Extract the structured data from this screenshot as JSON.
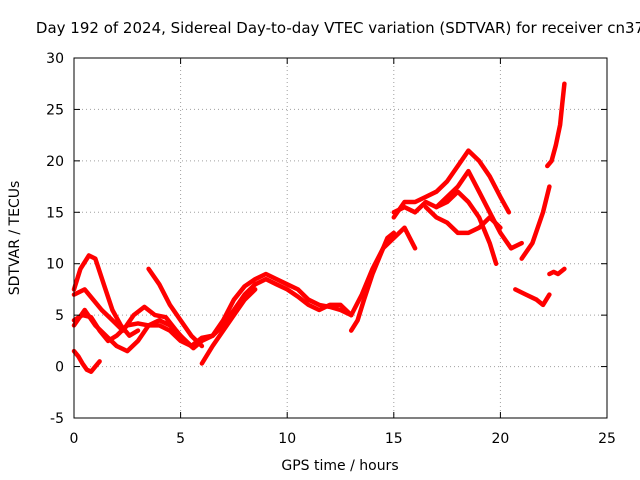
{
  "chart_data": {
    "type": "scatter",
    "title": "Day 192 of 2024, Sidereal Day-to-day VTEC variation (SDTVAR) for receiver cn37",
    "xlabel": "GPS time / hours",
    "ylabel": "SDTVAR / TECUs",
    "xlim": [
      0,
      25
    ],
    "ylim": [
      -5,
      30
    ],
    "xticks": [
      "0",
      "5",
      "10",
      "15",
      "20",
      "25"
    ],
    "yticks": [
      "-5",
      "0",
      "5",
      "10",
      "15",
      "20",
      "25",
      "30"
    ],
    "grid": true,
    "marker": "+",
    "color": "#ff0000",
    "series": [
      {
        "name": "s1",
        "x": [
          0,
          0.3,
          0.7,
          1.0,
          1.4,
          1.8,
          2.2,
          2.6,
          3.0
        ],
        "y": [
          7.5,
          9.5,
          10.8,
          10.5,
          8.0,
          5.5,
          4.0,
          3.0,
          3.5
        ]
      },
      {
        "name": "s2",
        "x": [
          0,
          0.5,
          0.9,
          1.3,
          1.8,
          2.3,
          2.8,
          3.3,
          3.8,
          4.3,
          4.8,
          5.2,
          5.6,
          6.0,
          6.5,
          7.0,
          7.5,
          8.0,
          8.5,
          9.0,
          9.5,
          10.0,
          10.5,
          11.0,
          11.5,
          12.0,
          12.5,
          13.0
        ],
        "y": [
          7.0,
          7.5,
          6.5,
          5.5,
          4.5,
          3.5,
          5.0,
          5.8,
          5.0,
          4.8,
          3.5,
          2.5,
          1.8,
          2.5,
          3.0,
          4.5,
          6.5,
          7.8,
          8.5,
          9.0,
          8.5,
          8.0,
          7.5,
          6.5,
          6.0,
          5.8,
          5.5,
          5.0
        ]
      },
      {
        "name": "s3",
        "x": [
          0,
          0.5,
          1.0,
          1.5,
          2.0,
          2.5,
          3.0,
          3.5,
          4.0,
          4.5,
          5.0,
          5.5,
          6.0,
          6.5,
          7.0,
          7.5,
          8.0,
          8.5,
          9.0,
          9.5,
          10.0,
          10.5,
          11.0,
          11.5,
          12.0,
          12.5,
          13.0
        ],
        "y": [
          4.0,
          5.5,
          4.0,
          3.0,
          2.0,
          1.5,
          2.5,
          4.0,
          4.5,
          4.0,
          3.0,
          2.0,
          2.8,
          3.0,
          4.0,
          5.5,
          7.0,
          8.0,
          8.5,
          8.0,
          7.5,
          6.8,
          6.0,
          5.5,
          6.0,
          6.0,
          5.0
        ]
      },
      {
        "name": "s4",
        "x": [
          0,
          0.4,
          0.8,
          1.2,
          1.6,
          2.0,
          2.5,
          3.0,
          3.5,
          4.0,
          4.5,
          5.0,
          5.5
        ],
        "y": [
          4.5,
          5.0,
          4.8,
          3.5,
          2.5,
          3.0,
          4.0,
          4.2,
          4.0,
          4.0,
          3.5,
          2.5,
          2.0
        ]
      },
      {
        "name": "s5",
        "x": [
          0,
          0.2,
          0.4,
          0.6,
          0.8,
          1.0,
          1.2
        ],
        "y": [
          1.5,
          1.0,
          0.3,
          -0.3,
          -0.5,
          0.0,
          0.5
        ]
      },
      {
        "name": "s6",
        "x": [
          3.5,
          4.0,
          4.5,
          5.0,
          5.5,
          6.0
        ],
        "y": [
          9.5,
          8.0,
          6.0,
          4.5,
          3.0,
          2.0
        ]
      },
      {
        "name": "s7",
        "x": [
          6.0,
          6.5,
          7.0,
          7.5,
          8.0,
          8.5
        ],
        "y": [
          0.3,
          2.0,
          3.5,
          5.0,
          6.5,
          7.5
        ]
      },
      {
        "name": "s8",
        "x": [
          13.0,
          13.3,
          13.6,
          14.0,
          14.4,
          14.7,
          15.0
        ],
        "y": [
          3.5,
          4.5,
          6.5,
          9.0,
          11.0,
          12.5,
          13.0
        ]
      },
      {
        "name": "s9",
        "x": [
          13.0,
          13.5,
          14.0,
          14.5,
          15.0,
          15.5,
          16.0
        ],
        "y": [
          5.0,
          7.0,
          9.5,
          11.5,
          12.5,
          13.5,
          11.5
        ]
      },
      {
        "name": "s10",
        "x": [
          15.0,
          15.5,
          16.0,
          16.5,
          17.0,
          17.5,
          18.0,
          18.5,
          19.0,
          19.5,
          20.0,
          20.4
        ],
        "y": [
          14.5,
          16.0,
          16.0,
          16.5,
          17.0,
          18.0,
          19.5,
          21.0,
          20.0,
          18.5,
          16.5,
          15.0
        ]
      },
      {
        "name": "s11",
        "x": [
          15.0,
          15.5,
          16.0,
          16.5,
          17.0,
          17.5,
          18.0,
          18.5,
          19.0,
          19.5,
          20.0,
          20.5,
          21.0
        ],
        "y": [
          15.0,
          15.5,
          15.0,
          16.0,
          15.5,
          16.5,
          17.5,
          19.0,
          17.0,
          15.0,
          13.0,
          11.5,
          12.0
        ]
      },
      {
        "name": "s12",
        "x": [
          16.5,
          17.0,
          17.5,
          18.0,
          18.5,
          19.0,
          19.5,
          20.0
        ],
        "y": [
          15.5,
          14.5,
          14.0,
          13.0,
          13.0,
          13.5,
          14.5,
          13.5
        ]
      },
      {
        "name": "s13",
        "x": [
          17.0,
          17.5,
          18.0,
          18.5,
          19.0,
          19.5,
          19.8
        ],
        "y": [
          15.5,
          16.0,
          17.0,
          16.0,
          14.5,
          12.0,
          10.0
        ]
      },
      {
        "name": "s14",
        "x": [
          20.7,
          21.2,
          21.7,
          22.0,
          22.3
        ],
        "y": [
          7.5,
          7.0,
          6.5,
          6.0,
          7.0
        ]
      },
      {
        "name": "s15",
        "x": [
          21.0,
          21.5,
          22.0,
          22.3
        ],
        "y": [
          10.5,
          12.0,
          15.0,
          17.5
        ]
      },
      {
        "name": "s16",
        "x": [
          22.2,
          22.4,
          22.6,
          22.8,
          22.9,
          23.0
        ],
        "y": [
          19.5,
          20.0,
          21.5,
          23.5,
          25.5,
          27.5
        ]
      },
      {
        "name": "s17",
        "x": [
          22.3,
          22.5,
          22.7,
          23.0
        ],
        "y": [
          9.0,
          9.2,
          9.0,
          9.5
        ]
      }
    ]
  }
}
